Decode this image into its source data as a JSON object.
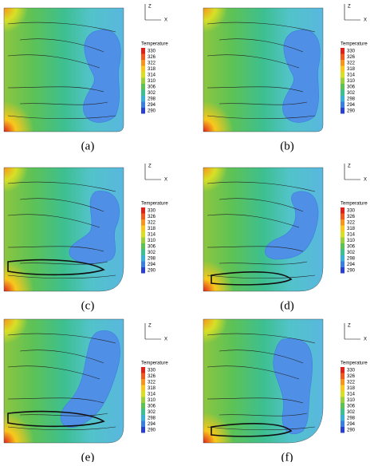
{
  "panels": [
    {
      "label": "(a)"
    },
    {
      "label": "(b)"
    },
    {
      "label": "(c)"
    },
    {
      "label": "(d)"
    },
    {
      "label": "(e)"
    },
    {
      "label": "(f)"
    }
  ],
  "legend": {
    "title": "Temperature",
    "ticks": [
      330,
      326,
      322,
      318,
      314,
      310,
      306,
      302,
      298,
      294,
      290
    ],
    "colors": [
      "#e0201b",
      "#f05a1e",
      "#f7941d",
      "#f8c81c",
      "#d9df26",
      "#9bcf3b",
      "#5cc257",
      "#3dbf8f",
      "#3bb0d6",
      "#3a7ee0",
      "#2b3fd1"
    ]
  },
  "axes": {
    "vertical": "Z",
    "horizontal": "X"
  }
}
